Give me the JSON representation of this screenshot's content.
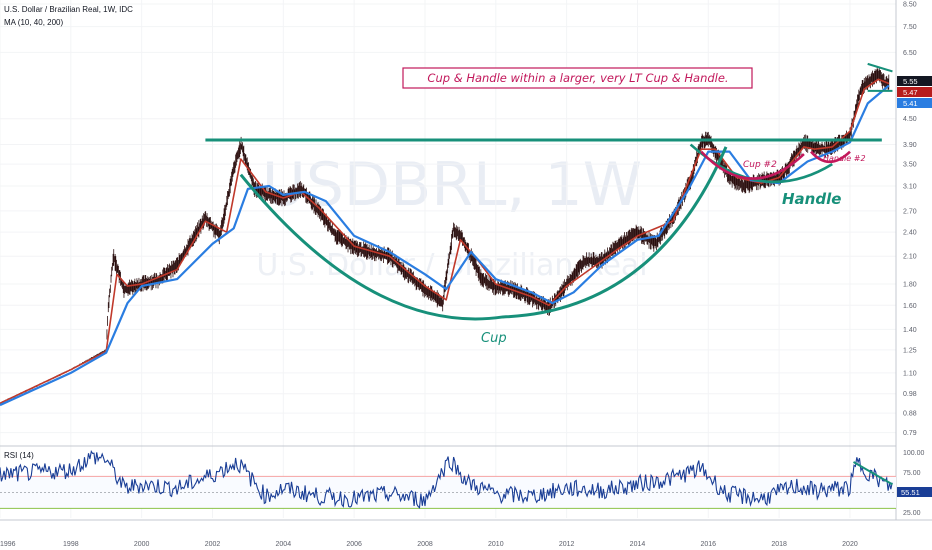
{
  "header": {
    "symbol_title": "U.S. Dollar / Brazilian Real, 1W, IDC",
    "ma_label": "MA (10, 40, 200)",
    "rsi_label": "RSI (14)"
  },
  "watermark": {
    "symbol": "USDBRL, 1W",
    "name": "U.S. Dollar / Brazilian Real"
  },
  "annotations": {
    "headline": "Cup & Handle within a larger, very LT Cup & Handle.",
    "cup": "Cup",
    "handle": "Handle",
    "cup2": "Cup #2",
    "handle2": "Handle #2"
  },
  "colors": {
    "price": "#2b0f0f",
    "ma10": "#c0392b",
    "ma40": "#2a7de1",
    "cup_curve": "#17907a",
    "resistance": "#17907a",
    "cup2_curve": "#c2185b",
    "rsi_line": "#1a3e96",
    "rsi_upper_band": "#f5a3a3",
    "rsi_lower_band": "#8bc34a",
    "headline_box": "#c2185b",
    "badge_last": "#131722",
    "badge_ma10": "#b71c1c",
    "badge_ma40": "#2a7de1",
    "badge_rsi": "#1a3e96"
  },
  "badges": {
    "last": "5.55",
    "ma10": "5.47",
    "ma40": "5.41",
    "rsi": "55.51"
  },
  "chart_data": [
    {
      "type": "line",
      "title": "U.S. Dollar / Brazilian Real, 1W, IDC",
      "scale": "log",
      "x_range": [
        1996.0,
        2021.3
      ],
      "ylim": [
        0.75,
        8.5
      ],
      "x_ticks": [
        "1996",
        "1998",
        "2000",
        "2002",
        "2004",
        "2006",
        "2008",
        "2010",
        "2012",
        "2014",
        "2016",
        "2018",
        "2020"
      ],
      "y_ticks": [
        "8.50",
        "7.50",
        "6.50",
        "5.55",
        "5.47",
        "5.41",
        "4.50",
        "3.90",
        "3.50",
        "3.10",
        "2.70",
        "2.40",
        "2.10",
        "1.80",
        "1.60",
        "1.40",
        "1.25",
        "1.10",
        "0.98",
        "0.88",
        "0.79"
      ],
      "series": [
        {
          "name": "USDBRL",
          "x": [
            1996.0,
            1997.0,
            1998.0,
            1999.0,
            1999.05,
            1999.2,
            1999.5,
            2000.0,
            2000.5,
            2001.0,
            2001.8,
            2002.2,
            2002.6,
            2002.8,
            2003.2,
            2003.6,
            2004.0,
            2004.5,
            2005.0,
            2005.5,
            2006.0,
            2006.5,
            2007.0,
            2007.5,
            2008.0,
            2008.5,
            2008.8,
            2009.0,
            2009.3,
            2009.6,
            2010.0,
            2010.5,
            2011.0,
            2011.5,
            2011.8,
            2012.0,
            2012.5,
            2013.0,
            2013.5,
            2014.0,
            2014.5,
            2015.0,
            2015.5,
            2015.8,
            2016.0,
            2016.3,
            2016.6,
            2017.0,
            2017.5,
            2018.0,
            2018.3,
            2018.7,
            2019.0,
            2019.3,
            2019.6,
            2020.0,
            2020.3,
            2020.6,
            2020.8,
            2021.0,
            2021.1
          ],
          "values": [
            0.93,
            1.02,
            1.12,
            1.25,
            1.55,
            2.1,
            1.75,
            1.8,
            1.85,
            2.0,
            2.6,
            2.35,
            3.4,
            3.9,
            3.05,
            2.95,
            2.9,
            3.05,
            2.7,
            2.35,
            2.2,
            2.15,
            2.1,
            1.9,
            1.75,
            1.62,
            2.45,
            2.35,
            2.1,
            1.85,
            1.77,
            1.75,
            1.67,
            1.58,
            1.7,
            1.8,
            2.05,
            2.05,
            2.25,
            2.4,
            2.25,
            2.6,
            3.2,
            3.95,
            4.05,
            3.6,
            3.25,
            3.1,
            3.2,
            3.25,
            3.5,
            3.95,
            3.85,
            3.8,
            3.9,
            4.1,
            5.3,
            5.6,
            5.8,
            5.45,
            5.55
          ]
        },
        {
          "name": "MA 10",
          "x": [
            1996.0,
            1998.0,
            1999.0,
            1999.3,
            1999.6,
            2000.0,
            2001.0,
            2001.8,
            2002.4,
            2002.8,
            2003.5,
            2004.0,
            2004.5,
            2005.0,
            2006.0,
            2007.0,
            2008.0,
            2008.6,
            2009.0,
            2009.5,
            2010.0,
            2011.0,
            2011.5,
            2012.0,
            2013.0,
            2013.5,
            2014.0,
            2015.0,
            2015.8,
            2016.2,
            2016.8,
            2017.5,
            2018.0,
            2018.7,
            2019.0,
            2019.5,
            2020.0,
            2020.4,
            2020.8,
            2021.1
          ],
          "values": [
            0.93,
            1.12,
            1.24,
            1.9,
            1.78,
            1.8,
            1.95,
            2.55,
            2.4,
            3.6,
            3.0,
            2.9,
            3.0,
            2.75,
            2.22,
            2.1,
            1.78,
            1.65,
            2.3,
            2.05,
            1.8,
            1.68,
            1.6,
            1.78,
            2.05,
            2.2,
            2.35,
            2.55,
            3.8,
            3.8,
            3.25,
            3.15,
            3.25,
            3.85,
            3.8,
            3.85,
            4.2,
            5.3,
            5.6,
            5.47
          ]
        },
        {
          "name": "MA 40",
          "x": [
            1996.0,
            1998.0,
            1999.0,
            1999.6,
            2000.0,
            2001.0,
            2002.0,
            2002.6,
            2003.0,
            2003.6,
            2004.0,
            2004.6,
            2005.2,
            2006.0,
            2007.0,
            2008.0,
            2008.6,
            2009.3,
            2010.0,
            2011.0,
            2011.6,
            2012.2,
            2013.0,
            2014.0,
            2014.6,
            2015.4,
            2016.0,
            2016.6,
            2017.2,
            2018.0,
            2018.8,
            2019.5,
            2020.0,
            2020.5,
            2021.1
          ],
          "values": [
            0.92,
            1.1,
            1.23,
            1.62,
            1.78,
            1.85,
            2.25,
            2.45,
            3.05,
            3.1,
            2.95,
            3.0,
            2.85,
            2.35,
            2.15,
            1.9,
            1.75,
            2.15,
            1.85,
            1.72,
            1.62,
            1.72,
            2.0,
            2.3,
            2.35,
            3.0,
            3.75,
            3.75,
            3.2,
            3.15,
            3.55,
            3.75,
            3.95,
            4.9,
            5.41
          ]
        }
      ],
      "overlays": {
        "resistance_level": 4.0,
        "cup_low": 1.5,
        "cup_low_x": 2010.2,
        "handle_low": 3.05,
        "handle_triangle_top": [
          [
            2020.5,
            6.1
          ],
          [
            2021.2,
            5.85
          ]
        ],
        "handle_triangle_bottom": [
          [
            2020.5,
            5.25
          ],
          [
            2021.2,
            5.25
          ]
        ]
      }
    },
    {
      "type": "line",
      "title": "RSI (14)",
      "ylim": [
        18,
        103
      ],
      "y_ticks": [
        "100.00",
        "75.00",
        "55.51",
        "25.00"
      ],
      "bands": {
        "upper": 70,
        "lower": 30,
        "mid": 50
      },
      "series": [
        {
          "name": "RSI",
          "x": [
            1996.0,
            1997.0,
            1998.0,
            1998.6,
            1999.0,
            1999.5,
            2000.0,
            2001.0,
            2002.0,
            2002.7,
            2003.5,
            2004.0,
            2005.0,
            2006.0,
            2007.0,
            2008.0,
            2008.7,
            2009.2,
            2010.0,
            2011.0,
            2012.0,
            2013.0,
            2014.0,
            2015.0,
            2015.8,
            2016.5,
            2017.5,
            2018.5,
            2019.0,
            2020.0,
            2020.2,
            2020.6,
            2021.0,
            2021.2
          ],
          "values": [
            72,
            75,
            78,
            95,
            92,
            55,
            60,
            55,
            72,
            88,
            45,
            55,
            45,
            42,
            48,
            40,
            92,
            62,
            48,
            45,
            55,
            52,
            60,
            68,
            80,
            48,
            42,
            58,
            52,
            56,
            88,
            72,
            60,
            55.51
          ]
        }
      ],
      "trendline": [
        [
          2020.1,
          88
        ],
        [
          2021.2,
          60
        ]
      ]
    }
  ]
}
